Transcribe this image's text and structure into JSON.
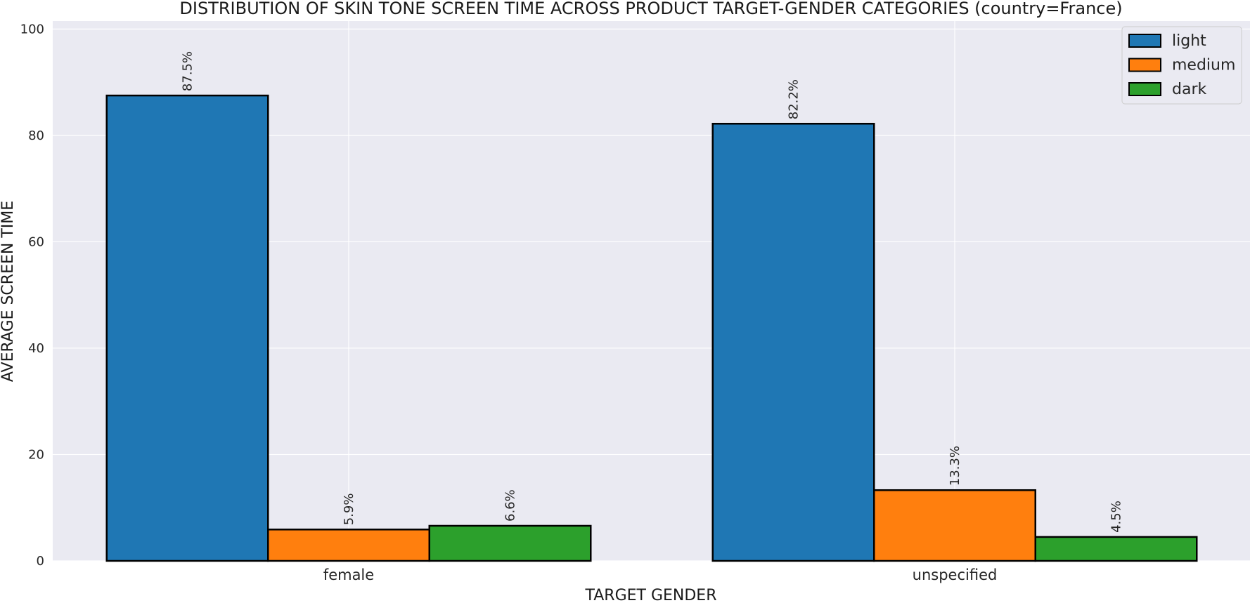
{
  "chart_data": {
    "type": "bar",
    "title": "DISTRIBUTION OF SKIN TONE SCREEN TIME ACROSS PRODUCT TARGET-GENDER CATEGORIES (country=France)",
    "xlabel": "TARGET GENDER",
    "ylabel": "AVERAGE SCREEN TIME",
    "categories": [
      "female",
      "unspecified"
    ],
    "series": [
      {
        "name": "light",
        "color": "#1f77b4",
        "values": [
          87.5,
          82.2
        ],
        "labels": [
          "87.5%",
          "82.2%"
        ]
      },
      {
        "name": "medium",
        "color": "#ff7f0e",
        "values": [
          5.9,
          13.3
        ],
        "labels": [
          "5.9%",
          "13.3%"
        ]
      },
      {
        "name": "dark",
        "color": "#2ca02c",
        "values": [
          6.6,
          4.5
        ],
        "labels": [
          "6.6%",
          "4.5%"
        ]
      }
    ],
    "ylim": [
      0,
      101.5
    ],
    "yticks": [
      0,
      20,
      40,
      60,
      80,
      100
    ],
    "grid": true,
    "legend": "top-right",
    "background": "#eaeaf2",
    "grid_color": "#ffffff"
  }
}
